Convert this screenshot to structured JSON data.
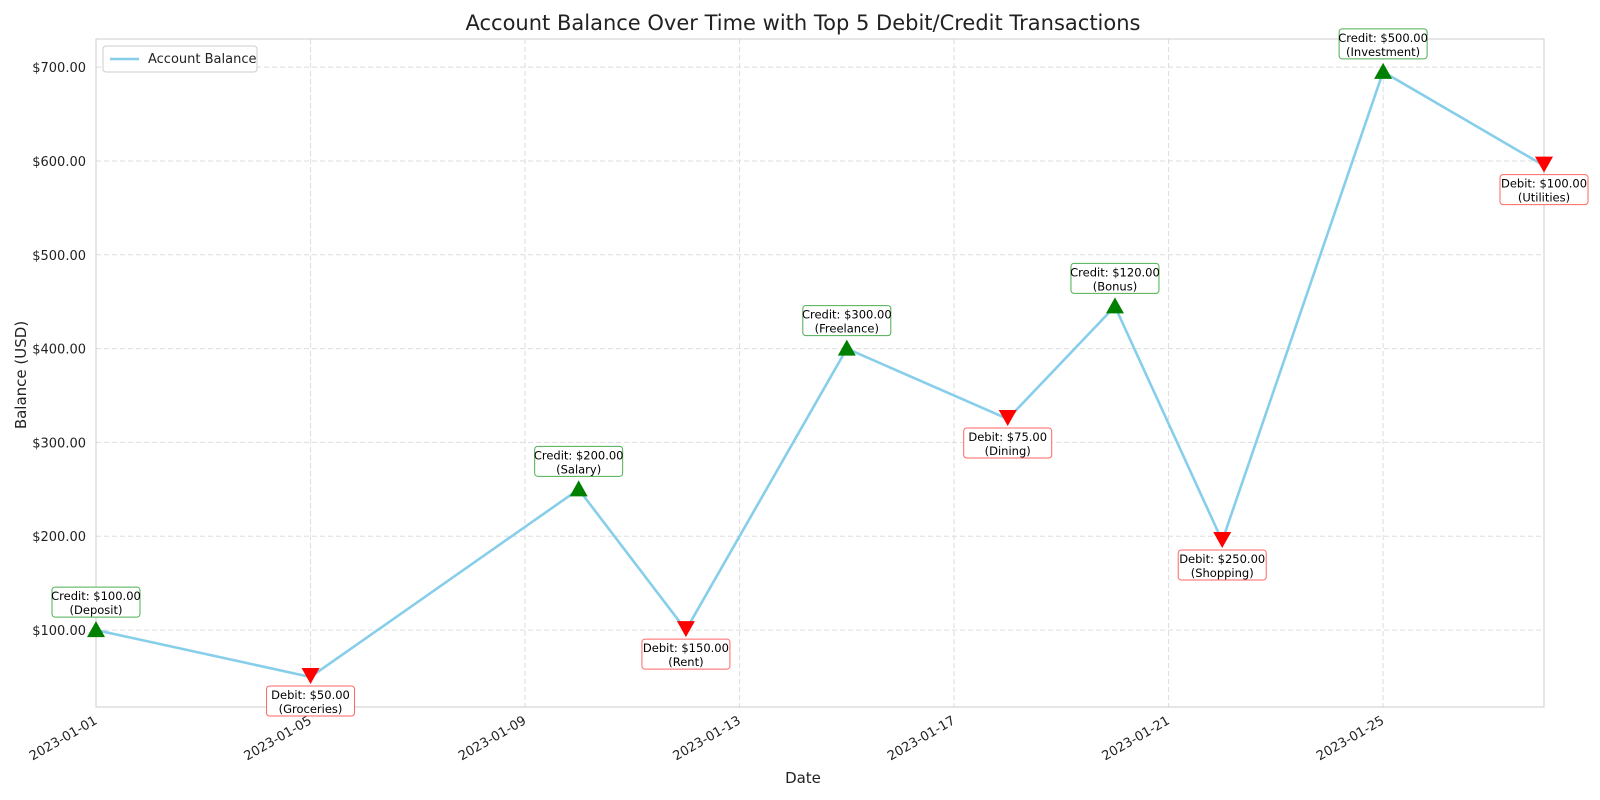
{
  "chart_data": {
    "type": "line",
    "title": "Account Balance Over Time with Top 5 Debit/Credit Transactions",
    "xlabel": "Date",
    "ylabel": "Balance (USD)",
    "xlim": [
      "2023-01-01",
      "2023-01-28"
    ],
    "ylim": [
      18,
      730
    ],
    "grid": true,
    "legend_position": "top-left",
    "x_ticks": [
      "2023-01-01",
      "2023-01-05",
      "2023-01-09",
      "2023-01-13",
      "2023-01-17",
      "2023-01-21",
      "2023-01-25"
    ],
    "y_ticks": [
      100,
      200,
      300,
      400,
      500,
      600,
      700
    ],
    "y_tick_labels": [
      "$100.00",
      "$200.00",
      "$300.00",
      "$400.00",
      "$500.00",
      "$600.00",
      "$700.00"
    ],
    "series": [
      {
        "name": "Account Balance",
        "color": "#87ceeb",
        "points": [
          {
            "x": "2023-01-01",
            "y": 100
          },
          {
            "x": "2023-01-05",
            "y": 50
          },
          {
            "x": "2023-01-10",
            "y": 250
          },
          {
            "x": "2023-01-12",
            "y": 100
          },
          {
            "x": "2023-01-15",
            "y": 400
          },
          {
            "x": "2023-01-18",
            "y": 325
          },
          {
            "x": "2023-01-20",
            "y": 445
          },
          {
            "x": "2023-01-22",
            "y": 195
          },
          {
            "x": "2023-01-25",
            "y": 695
          },
          {
            "x": "2023-01-28",
            "y": 595
          }
        ]
      }
    ],
    "annotations": [
      {
        "x": "2023-01-01",
        "y": 100,
        "kind": "credit",
        "lines": [
          "Credit: $100.00",
          "(Deposit)"
        ]
      },
      {
        "x": "2023-01-05",
        "y": 50,
        "kind": "debit",
        "lines": [
          "Debit: $50.00",
          "(Groceries)"
        ]
      },
      {
        "x": "2023-01-10",
        "y": 250,
        "kind": "credit",
        "lines": [
          "Credit: $200.00",
          "(Salary)"
        ]
      },
      {
        "x": "2023-01-12",
        "y": 100,
        "kind": "debit",
        "lines": [
          "Debit: $150.00",
          "(Rent)"
        ]
      },
      {
        "x": "2023-01-15",
        "y": 400,
        "kind": "credit",
        "lines": [
          "Credit: $300.00",
          "(Freelance)"
        ]
      },
      {
        "x": "2023-01-18",
        "y": 325,
        "kind": "debit",
        "lines": [
          "Debit: $75.00",
          "(Dining)"
        ]
      },
      {
        "x": "2023-01-20",
        "y": 445,
        "kind": "credit",
        "lines": [
          "Credit: $120.00",
          "(Bonus)"
        ]
      },
      {
        "x": "2023-01-22",
        "y": 195,
        "kind": "debit",
        "lines": [
          "Debit: $250.00",
          "(Shopping)"
        ]
      },
      {
        "x": "2023-01-25",
        "y": 695,
        "kind": "credit",
        "lines": [
          "Credit: $500.00",
          "(Investment)"
        ]
      },
      {
        "x": "2023-01-28",
        "y": 595,
        "kind": "debit",
        "lines": [
          "Debit: $100.00",
          "(Utilities)"
        ]
      }
    ],
    "colors": {
      "line": "#87ceeb",
      "credit": "#008000",
      "debit": "#ff0000",
      "credit_box": "#4caf50",
      "debit_box": "#ff6666",
      "grid": "#dddddd",
      "frame": "#cccccc"
    }
  }
}
